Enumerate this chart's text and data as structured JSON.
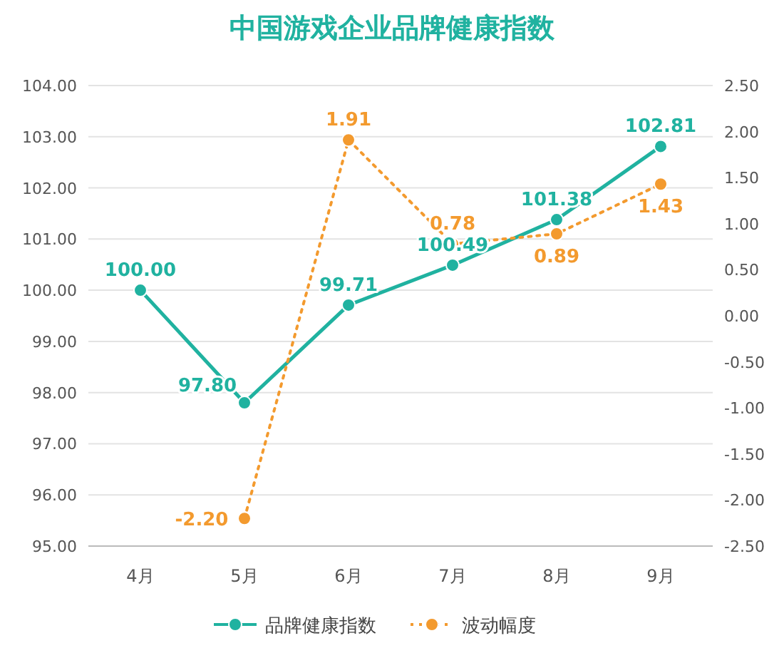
{
  "chart_data": {
    "type": "line",
    "title": "中国游戏企业品牌健康指数",
    "categories": [
      "4月",
      "5月",
      "6月",
      "7月",
      "8月",
      "9月"
    ],
    "series": [
      {
        "name": "品牌健康指数",
        "color": "#20b2a0",
        "values": [
          100.0,
          97.8,
          99.71,
          100.49,
          101.38,
          102.81
        ],
        "value_labels": [
          "100.00",
          "97.80",
          "99.71",
          "100.49",
          "101.38",
          "102.81"
        ],
        "line_style": "solid"
      },
      {
        "name": "波动幅度",
        "color": "#f39a2e",
        "values": [
          null,
          -2.2,
          1.91,
          0.78,
          0.89,
          1.43
        ],
        "value_labels": [
          null,
          "-2.20",
          "1.91",
          "0.78",
          "0.89",
          "1.43"
        ],
        "axis": "y2",
        "line_style": "dotted"
      }
    ],
    "ylim": [
      95,
      104
    ],
    "yticks": [
      {
        "value": 95,
        "label": "95.00"
      },
      {
        "value": 96,
        "label": "96.00"
      },
      {
        "value": 97,
        "label": "97.00"
      },
      {
        "value": 98,
        "label": "98.00"
      },
      {
        "value": 99,
        "label": "99.00"
      },
      {
        "value": 100,
        "label": "100.00"
      },
      {
        "value": 101,
        "label": "101.00"
      },
      {
        "value": 102,
        "label": "102.00"
      },
      {
        "value": 103,
        "label": "103.00"
      },
      {
        "value": 104,
        "label": "104.00"
      }
    ],
    "y2lim": [
      -2.5,
      2.5
    ],
    "y2ticks": [
      {
        "value": -2.5,
        "label": "-2.50"
      },
      {
        "value": -2,
        "label": "-2.00"
      },
      {
        "value": -1.5,
        "label": "-1.50"
      },
      {
        "value": -1,
        "label": "-1.00"
      },
      {
        "value": -0.5,
        "label": "-0.50"
      },
      {
        "value": 0,
        "label": "0.00"
      },
      {
        "value": 0.5,
        "label": "0.50"
      },
      {
        "value": 1,
        "label": "1.00"
      },
      {
        "value": 1.5,
        "label": "1.50"
      },
      {
        "value": 2,
        "label": "2.00"
      },
      {
        "value": 2.5,
        "label": "2.50"
      }
    ],
    "grid": "y",
    "marker": "circle",
    "legend": "bottom"
  }
}
